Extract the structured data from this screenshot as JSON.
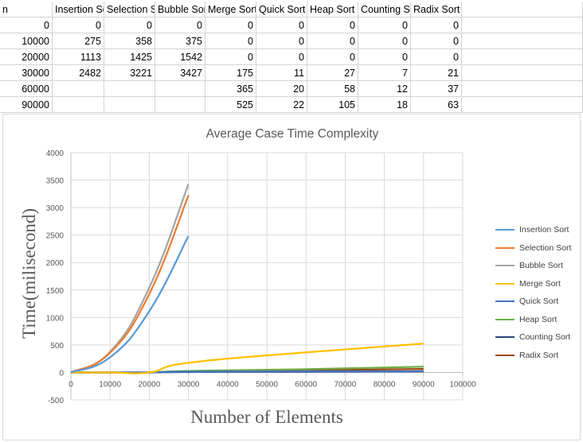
{
  "sheet": {
    "headers": [
      "n",
      "Insertion Sort",
      "Selection Sort",
      "Bubble Sort",
      "Merge Sort",
      "Quick Sort",
      "Heap Sort",
      "Counting Sort",
      "Radix Sort"
    ],
    "rows": [
      [
        "0",
        "0",
        "0",
        "0",
        "0",
        "0",
        "0",
        "0",
        "0"
      ],
      [
        "10000",
        "275",
        "358",
        "375",
        "0",
        "0",
        "0",
        "0",
        "0"
      ],
      [
        "20000",
        "1113",
        "1425",
        "1542",
        "0",
        "0",
        "0",
        "0",
        "0"
      ],
      [
        "30000",
        "2482",
        "3221",
        "3427",
        "175",
        "11",
        "27",
        "7",
        "21"
      ],
      [
        "60000",
        "",
        "",
        "",
        "365",
        "20",
        "58",
        "12",
        "37"
      ],
      [
        "90000",
        "",
        "",
        "",
        "525",
        "22",
        "105",
        "18",
        "63"
      ]
    ]
  },
  "chart_data": {
    "type": "line",
    "title": "Average Case Time Complexity",
    "xlabel": "Number of Elements",
    "ylabel": "Time(milisecond)",
    "xlim": [
      0,
      100000
    ],
    "ylim": [
      -500,
      4000
    ],
    "xticks": [
      "0",
      "10000",
      "20000",
      "30000",
      "40000",
      "50000",
      "60000",
      "70000",
      "80000",
      "90000",
      "100000"
    ],
    "yticks": [
      "-500",
      "0",
      "500",
      "1000",
      "1500",
      "2000",
      "2500",
      "3000",
      "3500",
      "4000"
    ],
    "grid": true,
    "legend_position": "right",
    "series": [
      {
        "name": "Insertion Sort",
        "color": "#5b9bd5",
        "x": [
          0,
          10000,
          20000,
          30000
        ],
        "y": [
          0,
          275,
          1113,
          2482
        ]
      },
      {
        "name": "Selection Sort",
        "color": "#ed7d31",
        "x": [
          0,
          10000,
          20000,
          30000
        ],
        "y": [
          0,
          358,
          1425,
          3221
        ]
      },
      {
        "name": "Bubble Sort",
        "color": "#a5a5a5",
        "x": [
          0,
          10000,
          20000,
          30000
        ],
        "y": [
          0,
          375,
          1542,
          3427
        ]
      },
      {
        "name": "Merge Sort",
        "color": "#ffc000",
        "x": [
          0,
          10000,
          20000,
          30000,
          60000,
          90000
        ],
        "y": [
          0,
          0,
          0,
          175,
          365,
          525
        ]
      },
      {
        "name": "Quick Sort",
        "color": "#4472c4",
        "x": [
          0,
          10000,
          20000,
          30000,
          60000,
          90000
        ],
        "y": [
          0,
          0,
          0,
          11,
          20,
          22
        ]
      },
      {
        "name": "Heap Sort",
        "color": "#70ad47",
        "x": [
          0,
          10000,
          20000,
          30000,
          60000,
          90000
        ],
        "y": [
          0,
          0,
          0,
          27,
          58,
          105
        ]
      },
      {
        "name": "Counting Sort",
        "color": "#264478",
        "x": [
          0,
          10000,
          20000,
          30000,
          60000,
          90000
        ],
        "y": [
          0,
          0,
          0,
          7,
          12,
          18
        ]
      },
      {
        "name": "Radix Sort",
        "color": "#9e480e",
        "x": [
          0,
          10000,
          20000,
          30000,
          60000,
          90000
        ],
        "y": [
          0,
          0,
          0,
          21,
          37,
          63
        ]
      }
    ]
  }
}
